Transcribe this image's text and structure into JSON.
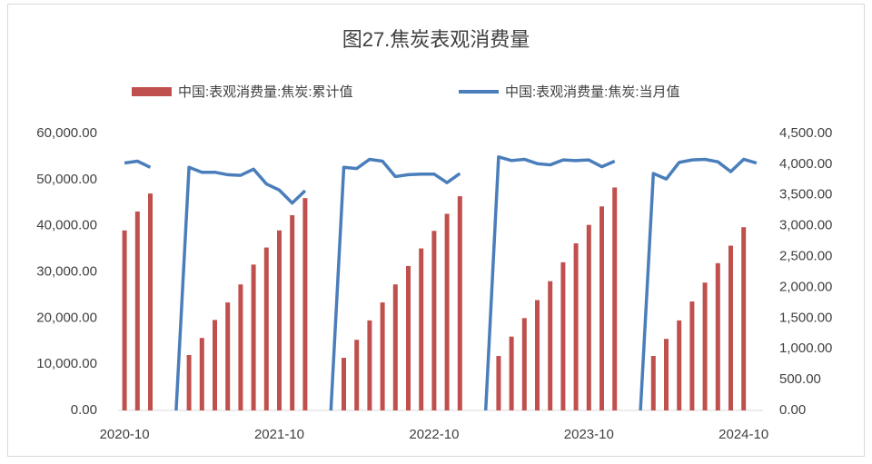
{
  "chart_data": {
    "type": "bar_line",
    "title": "图27.焦炭表观消费量",
    "categories": [
      "2020-10",
      null,
      null,
      null,
      null,
      null,
      null,
      null,
      null,
      null,
      null,
      null,
      "2021-10",
      null,
      null,
      null,
      null,
      null,
      null,
      null,
      null,
      null,
      null,
      null,
      "2022-10",
      null,
      null,
      null,
      null,
      null,
      null,
      null,
      null,
      null,
      null,
      null,
      "2023-10",
      null,
      null,
      null,
      null,
      null,
      null,
      null,
      null,
      null,
      null,
      null,
      "2024-10",
      null
    ],
    "series": [
      {
        "name": "中国:表观消费量:焦炭:累计值",
        "type": "bar",
        "color": "#c0504d",
        "values": [
          39000,
          43100,
          47000,
          null,
          null,
          12000,
          15700,
          19600,
          23400,
          27300,
          31600,
          35300,
          39000,
          42300,
          46000,
          null,
          null,
          11400,
          15300,
          19500,
          23400,
          27300,
          31300,
          35100,
          38900,
          42600,
          46400,
          null,
          null,
          11800,
          16000,
          20000,
          23900,
          28000,
          32100,
          36200,
          40200,
          44200,
          48300,
          null,
          null,
          11800,
          15500,
          19500,
          23600,
          27700,
          31900,
          35700,
          39700,
          null
        ]
      },
      {
        "name": "中国:表观消费量:焦炭:当月值",
        "type": "line",
        "axis": "y2",
        "color": "#4a7ebb",
        "values": [
          4020,
          4050,
          3950,
          null,
          0,
          3950,
          3870,
          3870,
          3830,
          3820,
          3920,
          3680,
          3580,
          3370,
          3570,
          null,
          0,
          3950,
          3930,
          4080,
          4050,
          3800,
          3830,
          3840,
          3840,
          3700,
          3850,
          null,
          0,
          4120,
          4060,
          4080,
          4010,
          3990,
          4070,
          4060,
          4070,
          3960,
          4050,
          null,
          0,
          3850,
          3760,
          4030,
          4070,
          4080,
          4040,
          3880,
          4080,
          4020
        ]
      }
    ],
    "ylim": [
      0,
      60000
    ],
    "yticks": [
      {
        "value": 0,
        "label": "0.00"
      },
      {
        "value": 10000,
        "label": "10,000.00"
      },
      {
        "value": 20000,
        "label": "20,000.00"
      },
      {
        "value": 30000,
        "label": "30,000.00"
      },
      {
        "value": 40000,
        "label": "40,000.00"
      },
      {
        "value": 50000,
        "label": "50,000.00"
      },
      {
        "value": 60000,
        "label": "60,000.00"
      }
    ],
    "y2lim": [
      0,
      4500
    ],
    "y2ticks": [
      {
        "value": 0,
        "label": "0.00"
      },
      {
        "value": 500,
        "label": "500.00"
      },
      {
        "value": 1000,
        "label": "1,000.00"
      },
      {
        "value": 1500,
        "label": "1,500.00"
      },
      {
        "value": 2000,
        "label": "2,000.00"
      },
      {
        "value": 2500,
        "label": "2,500.00"
      },
      {
        "value": 3000,
        "label": "3,000.00"
      },
      {
        "value": 3500,
        "label": "3,500.00"
      },
      {
        "value": 4000,
        "label": "4,000.00"
      },
      {
        "value": 4500,
        "label": "4,500.00"
      }
    ],
    "legend": "top"
  }
}
